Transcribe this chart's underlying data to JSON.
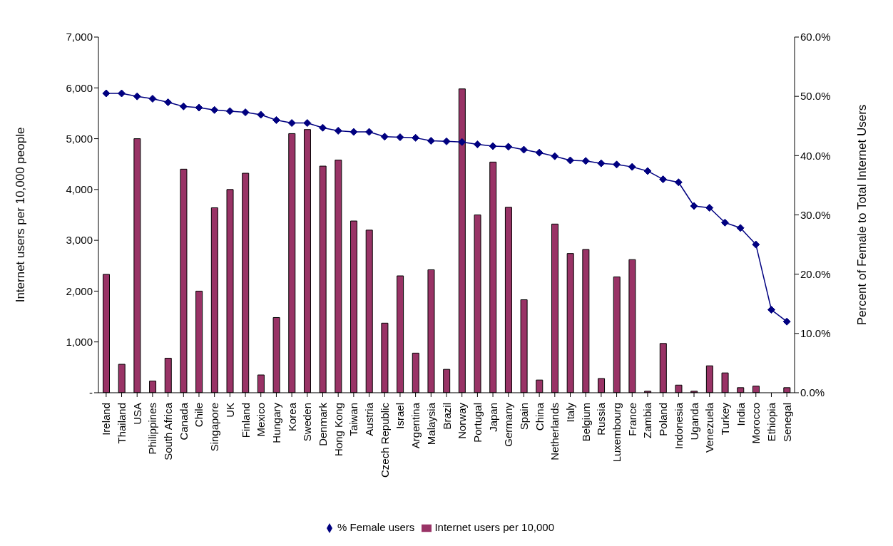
{
  "chart_data": {
    "type": "bar",
    "ylabel": "Internet users per 10,000 people",
    "y2label": "Percent of Female to Total Internet Users",
    "categories": [
      "Ireland",
      "Thailand",
      "USA",
      "Philippines",
      "South Africa",
      "Canada",
      "Chile",
      "Singapore",
      "UK",
      "Finland",
      "Mexico",
      "Hungary",
      "Korea",
      "Sweden",
      "Denmark",
      "Hong Kong",
      "Taiwan",
      "Austria",
      "Czech Republic",
      "Israel",
      "Argentina",
      "Malaysia",
      "Brazil",
      "Norway",
      "Portugal",
      "Japan",
      "Germany",
      "Spain",
      "China",
      "Netherlands",
      "Italy",
      "Belgium",
      "Russia",
      "Luxembourg",
      "France",
      "Zambia",
      "Poland",
      "Indonesia",
      "Uganda",
      "Venezuela",
      "Turkey",
      "India",
      "Morocco",
      "Ethiopia",
      "Senegal"
    ],
    "series": [
      {
        "name": "Internet users per 10,000",
        "color": "#993366",
        "values": [
          2330,
          560,
          5000,
          230,
          680,
          4400,
          2000,
          3640,
          4000,
          4320,
          350,
          1480,
          5100,
          5180,
          4460,
          4580,
          3380,
          3200,
          1370,
          2300,
          780,
          2420,
          460,
          5980,
          3500,
          4540,
          3650,
          1830,
          250,
          3320,
          2740,
          2820,
          280,
          2280,
          2620,
          30,
          970,
          150,
          30,
          530,
          390,
          100,
          130,
          0,
          100
        ]
      },
      {
        "name": "% Female users",
        "type": "line",
        "axis": "y2",
        "color": "#000080",
        "values": [
          50.5,
          50.5,
          50,
          49.6,
          49,
          48.3,
          48.1,
          47.7,
          47.5,
          47.3,
          46.9,
          46,
          45.5,
          45.5,
          44.7,
          44.2,
          44,
          44,
          43.2,
          43.1,
          43,
          42.5,
          42.4,
          42.3,
          41.9,
          41.6,
          41.5,
          41,
          40.5,
          39.9,
          39.2,
          39.1,
          38.7,
          38.5,
          38.1,
          37.4,
          36,
          35.5,
          31.5,
          31.2,
          28.7,
          27.8,
          25,
          14,
          12
        ]
      }
    ],
    "ylim": [
      0,
      7000
    ],
    "yticks": [
      {
        "value": 0,
        "label": "-"
      },
      {
        "value": 1000,
        "label": "1,000"
      },
      {
        "value": 2000,
        "label": "2,000"
      },
      {
        "value": 3000,
        "label": "3,000"
      },
      {
        "value": 4000,
        "label": "4,000"
      },
      {
        "value": 5000,
        "label": "5,000"
      },
      {
        "value": 6000,
        "label": "6,000"
      },
      {
        "value": 7000,
        "label": "7,000"
      }
    ],
    "y2lim": [
      0,
      60
    ],
    "y2ticks": [
      {
        "value": 0,
        "label": "0.0%"
      },
      {
        "value": 10,
        "label": "10.0%"
      },
      {
        "value": 20,
        "label": "20.0%"
      },
      {
        "value": 30,
        "label": "30.0%"
      },
      {
        "value": 40,
        "label": "40.0%"
      },
      {
        "value": 50,
        "label": "50.0%"
      },
      {
        "value": 60,
        "label": "60.0%"
      }
    ],
    "marker": "diamond",
    "legend": "bottom",
    "grid": false
  }
}
